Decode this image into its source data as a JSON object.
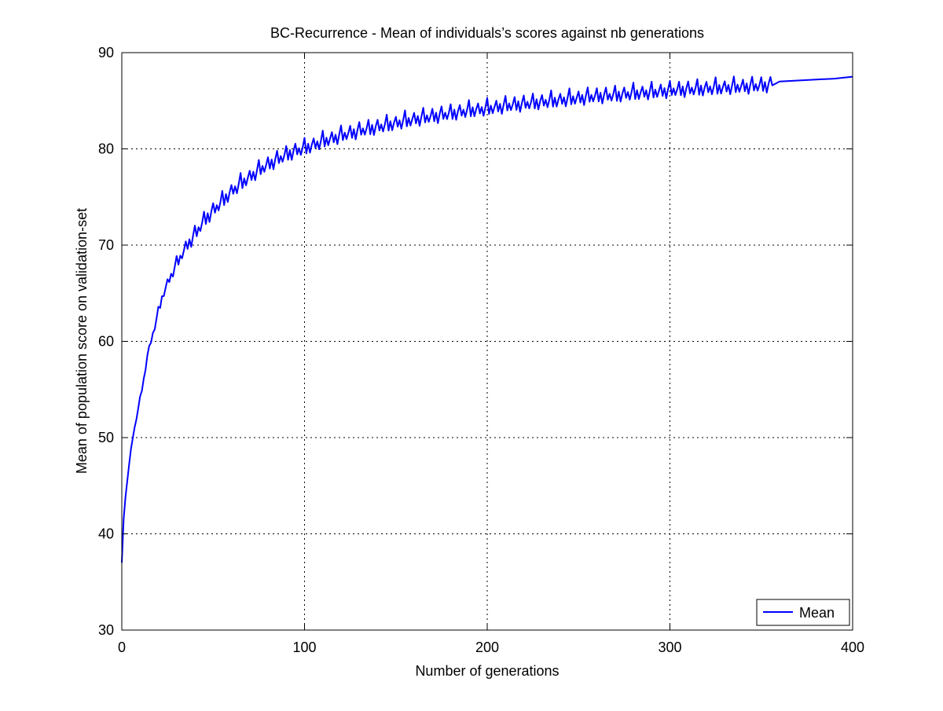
{
  "chart_data": {
    "type": "line",
    "title": "BC-Recurrence - Mean of individuals’s scores against nb generations",
    "xlabel": "Number of generations",
    "ylabel": "Mean of population score on validation-set",
    "xlim": [
      0,
      400
    ],
    "ylim": [
      30,
      90
    ],
    "xticks": [
      0,
      100,
      200,
      300,
      400
    ],
    "yticks": [
      30,
      40,
      50,
      60,
      70,
      80,
      90
    ],
    "xtick_labels": [
      "0",
      "100",
      "200",
      "300",
      "400"
    ],
    "ytick_labels": [
      "30",
      "40",
      "50",
      "60",
      "70",
      "80",
      "90"
    ],
    "grid": true,
    "legend": {
      "position": "bottom-right",
      "entries": [
        "Mean"
      ]
    },
    "series": [
      {
        "name": "Mean",
        "color": "#0000ff",
        "x": [
          0,
          1,
          2,
          3,
          4,
          5,
          6,
          7,
          8,
          9,
          10,
          12,
          14,
          16,
          18,
          20,
          22,
          25,
          28,
          30,
          33,
          36,
          40,
          45,
          50,
          55,
          60,
          65,
          70,
          75,
          80,
          85,
          90,
          95,
          100,
          110,
          120,
          130,
          140,
          150,
          160,
          170,
          180,
          190,
          200,
          210,
          220,
          230,
          240,
          250,
          260,
          270,
          280,
          290,
          300,
          310,
          320,
          330,
          340,
          350,
          356,
          358,
          360,
          370,
          380,
          390,
          400
        ],
        "values": [
          37.0,
          41.5,
          43.8,
          45.5,
          47.2,
          48.8,
          50.0,
          51.0,
          52.0,
          53.0,
          54.0,
          56.0,
          58.5,
          60.0,
          61.5,
          63.0,
          64.5,
          66.0,
          67.2,
          68.0,
          69.0,
          70.0,
          71.0,
          72.5,
          73.5,
          74.5,
          75.5,
          76.3,
          77.0,
          77.7,
          78.3,
          78.8,
          79.3,
          79.7,
          80.0,
          80.7,
          81.3,
          81.8,
          82.2,
          82.6,
          83.0,
          83.3,
          83.6,
          83.9,
          84.1,
          84.4,
          84.6,
          84.8,
          85.0,
          85.2,
          85.4,
          85.5,
          85.7,
          85.8,
          86.0,
          86.1,
          86.2,
          86.3,
          86.4,
          86.5,
          86.6,
          86.8,
          87.0,
          87.1,
          87.2,
          87.3,
          87.5
        ],
        "oscillation_amplitude": 1.2,
        "oscillation_period": 5,
        "oscillation_until_x": 356
      }
    ]
  }
}
